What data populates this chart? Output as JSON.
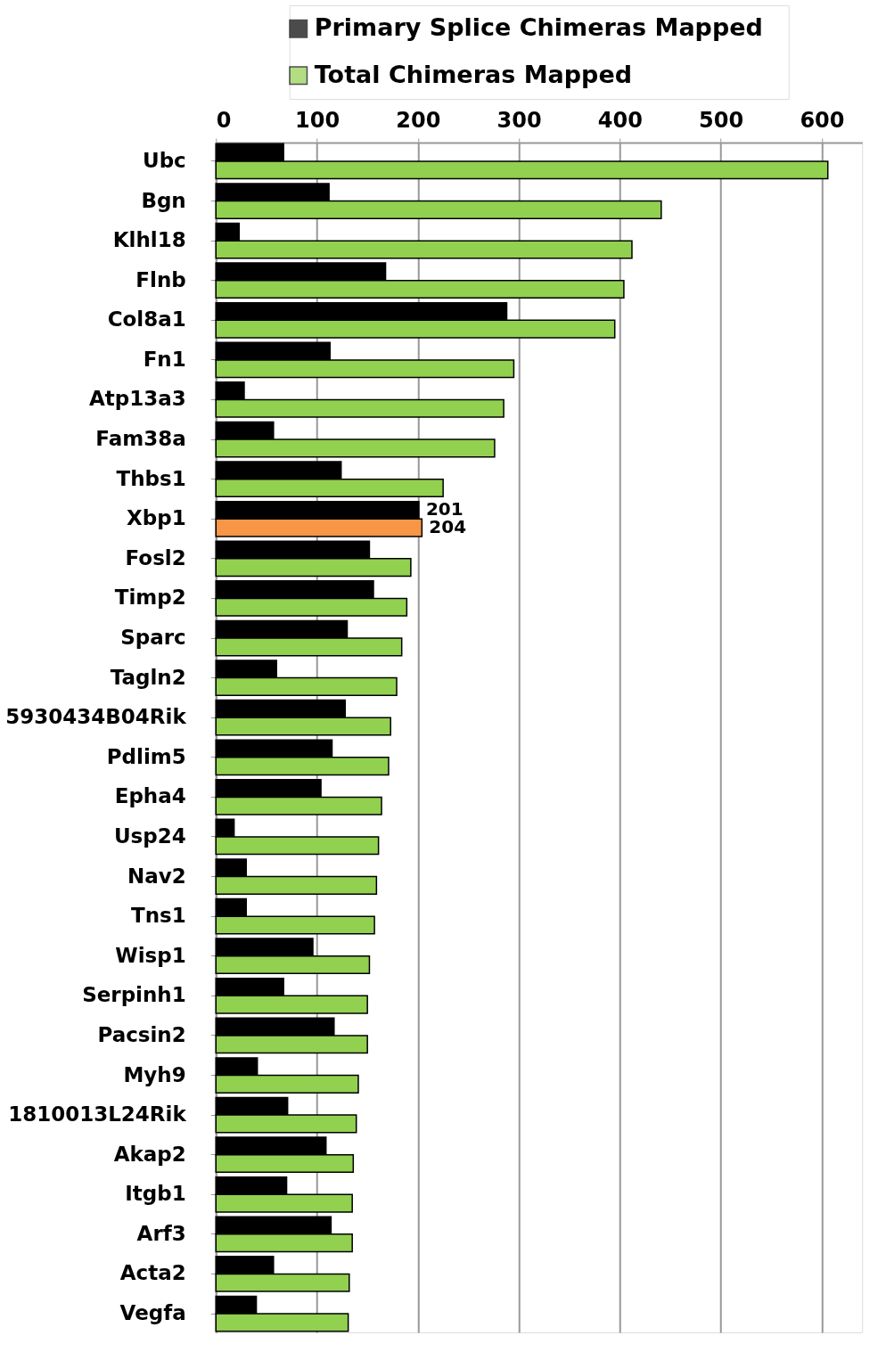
{
  "chart_data": {
    "type": "bar",
    "orientation": "horizontal",
    "categories": [
      "Ubc",
      "Bgn",
      "Klhl18",
      "Flnb",
      "Col8a1",
      "Fn1",
      "Atp13a3",
      "Fam38a",
      "Thbs1",
      "Xbp1",
      "Fosl2",
      "Timp2",
      "Sparc",
      "Tagln2",
      "5930434B04Rik",
      "Pdlim5",
      "Epha4",
      "Usp24",
      "Nav2",
      "Tns1",
      "Wisp1",
      "Serpinh1",
      "Pacsin2",
      "Myh9",
      "1810013L24Rik",
      "Akap2",
      "Itgb1",
      "Arf3",
      "Acta2",
      "Vegfa"
    ],
    "series": [
      {
        "name": "Primary Splice Chimeras Mapped",
        "color": "#000000",
        "values": [
          67,
          112,
          23,
          168,
          288,
          113,
          28,
          57,
          124,
          201,
          152,
          156,
          130,
          60,
          128,
          115,
          104,
          18,
          30,
          30,
          96,
          67,
          117,
          41,
          71,
          109,
          70,
          114,
          57,
          40
        ],
        "value_labels": [
          null,
          null,
          null,
          null,
          null,
          null,
          null,
          null,
          null,
          "201",
          null,
          null,
          null,
          null,
          null,
          null,
          null,
          null,
          null,
          null,
          null,
          null,
          null,
          null,
          null,
          null,
          null,
          null,
          null,
          null
        ]
      },
      {
        "name": "Total Chimeras Mapped",
        "color": "#92d050",
        "colors": [
          "#92d050",
          "#92d050",
          "#92d050",
          "#92d050",
          "#92d050",
          "#92d050",
          "#92d050",
          "#92d050",
          "#92d050",
          "#f79646",
          "#92d050",
          "#92d050",
          "#92d050",
          "#92d050",
          "#92d050",
          "#92d050",
          "#92d050",
          "#92d050",
          "#92d050",
          "#92d050",
          "#92d050",
          "#92d050",
          "#92d050",
          "#92d050",
          "#92d050",
          "#92d050",
          "#92d050",
          "#92d050",
          "#92d050",
          "#92d050"
        ],
        "values": [
          606,
          441,
          412,
          404,
          395,
          295,
          285,
          276,
          225,
          204,
          193,
          189,
          184,
          179,
          173,
          171,
          164,
          161,
          159,
          157,
          152,
          150,
          150,
          141,
          139,
          136,
          135,
          135,
          132,
          131
        ],
        "value_labels": [
          null,
          null,
          null,
          null,
          null,
          null,
          null,
          null,
          null,
          "204",
          null,
          null,
          null,
          null,
          null,
          null,
          null,
          null,
          null,
          null,
          null,
          null,
          null,
          null,
          null,
          null,
          null,
          null,
          null,
          null
        ]
      }
    ],
    "xlim": [
      0,
      640
    ],
    "xticks": [
      0,
      100,
      200,
      300,
      400,
      500,
      600
    ],
    "grid": "x",
    "legend": "top"
  }
}
